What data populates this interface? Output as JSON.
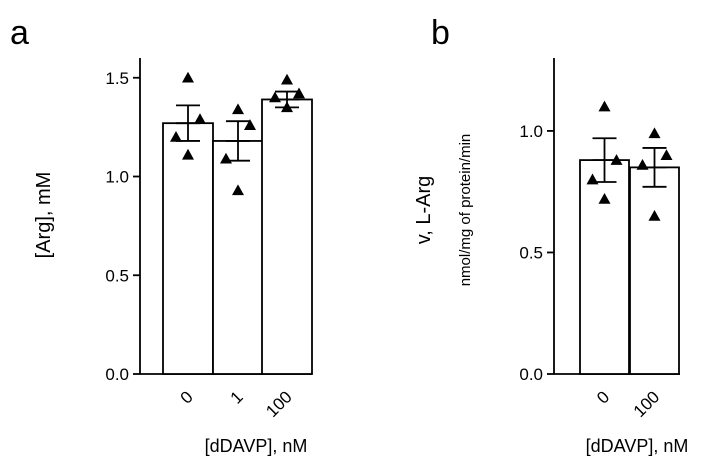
{
  "chart_data": [
    {
      "panel": "a",
      "type": "bar",
      "xlabel": "[dDAVP], nM",
      "ylabel": "[Arg], mM",
      "ylim": [
        0,
        1.6
      ],
      "yticks": [
        "0.0",
        "0.5",
        "1.0",
        "1.5"
      ],
      "categories": [
        "0",
        "1",
        "100"
      ],
      "values": [
        1.27,
        1.18,
        1.39
      ],
      "errors": [
        0.09,
        0.1,
        0.04
      ],
      "points": [
        [
          1.5,
          1.29,
          1.2,
          1.11
        ],
        [
          1.34,
          1.26,
          1.09,
          0.93
        ],
        [
          1.49,
          1.42,
          1.4,
          1.35
        ]
      ]
    },
    {
      "panel": "b",
      "type": "bar",
      "xlabel": "[dDAVP], nM",
      "ylabel": "v, L-Arg",
      "ylabel2": "nmol/mg of protein/min",
      "ylim": [
        0,
        1.3
      ],
      "yticks": [
        "0.0",
        "0.5",
        "1.0"
      ],
      "categories": [
        "0",
        "100"
      ],
      "values": [
        0.88,
        0.85
      ],
      "errors": [
        0.09,
        0.08
      ],
      "points": [
        [
          1.1,
          0.88,
          0.8,
          0.72
        ],
        [
          0.99,
          0.9,
          0.86,
          0.65
        ]
      ]
    }
  ]
}
